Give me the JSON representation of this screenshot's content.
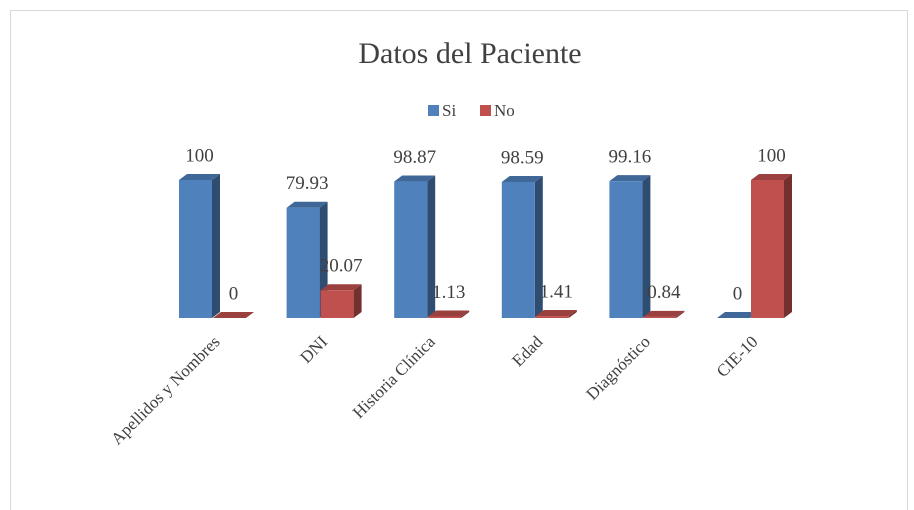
{
  "chart_data": {
    "type": "bar3d",
    "title": "Datos del Paciente",
    "categories": [
      "Apellidos y Nombres",
      "DNI",
      "Historia Clínica",
      "Edad",
      "Diagnóstico",
      "CIE-10"
    ],
    "series": [
      {
        "name": "Si",
        "color": "#4f81bd",
        "values": [
          100,
          79.93,
          98.87,
          98.59,
          99.16,
          0
        ]
      },
      {
        "name": "No",
        "color": "#c0504d",
        "values": [
          0,
          20.07,
          1.13,
          1.41,
          0.84,
          100
        ]
      }
    ],
    "legend": "top"
  }
}
